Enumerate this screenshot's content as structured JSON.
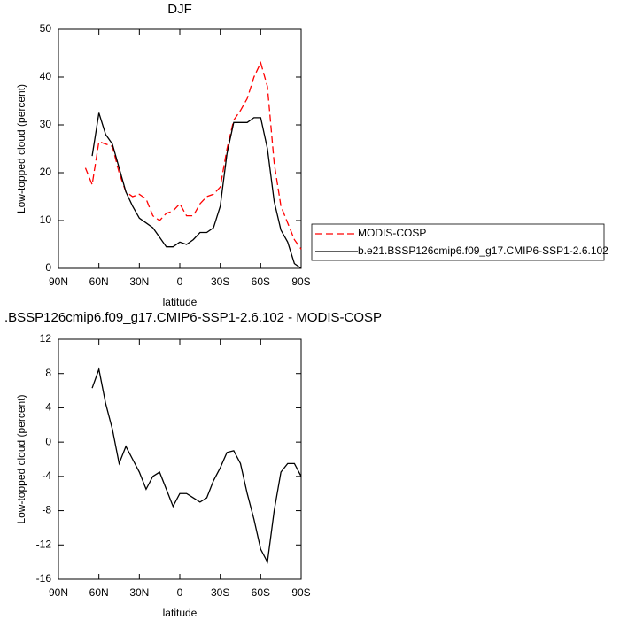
{
  "chart_data": [
    {
      "type": "line",
      "title": "DJF",
      "x_label": "latitude",
      "y_label": "Low-topped cloud (percent)",
      "x": [
        70,
        65,
        60,
        55,
        50,
        45,
        40,
        35,
        30,
        25,
        20,
        15,
        10,
        5,
        0,
        -5,
        -10,
        -15,
        -20,
        -25,
        -30,
        -35,
        -40,
        -45,
        -50,
        -55,
        -60,
        -65,
        -70,
        -75,
        -80,
        -85,
        -90
      ],
      "xlim": [
        90,
        -90
      ],
      "xticks": [
        {
          "value": 90,
          "label": "90N"
        },
        {
          "value": 60,
          "label": "60N"
        },
        {
          "value": 30,
          "label": "30N"
        },
        0,
        {
          "value": -30,
          "label": "30S"
        },
        {
          "value": -60,
          "label": "60S"
        },
        {
          "value": -90,
          "label": "90S"
        }
      ],
      "ylim": [
        0,
        50
      ],
      "yticks": [
        0,
        10,
        20,
        30,
        40,
        50
      ],
      "legend": "right",
      "series": [
        {
          "name": "MODIS-COSP",
          "color": "#ff0000",
          "style": "dashed",
          "values": [
            21,
            17.5,
            26.5,
            26,
            25.5,
            20,
            16,
            15,
            15.5,
            14.5,
            11,
            10,
            11.5,
            12,
            13.5,
            11,
            11,
            13.5,
            15,
            15.5,
            17,
            25,
            31,
            33,
            35.5,
            40,
            43,
            38,
            22,
            13,
            9.5,
            6,
            4
          ]
        },
        {
          "name": "b.e21.BSSP126cmip6.f09_g17.CMIP6-SSP1-2.6.102",
          "color": "#000000",
          "style": "solid",
          "values": [
            null,
            23.5,
            32.5,
            28,
            26,
            21,
            16,
            13,
            10.5,
            9.5,
            8.5,
            6.5,
            4.5,
            4.5,
            5.5,
            5,
            6,
            7.5,
            7.5,
            8.5,
            13,
            24,
            30.5,
            30.5,
            30.5,
            31.5,
            31.5,
            25,
            14,
            8,
            5.5,
            1,
            0
          ]
        }
      ]
    },
    {
      "type": "line",
      "title": ".BSSP126cmip6.f09_g17.CMIP6-SSP1-2.6.102 - MODIS-COSP",
      "x_label": "latitude",
      "y_label": "Low-topped cloud (percent)",
      "x": [
        65,
        60,
        55,
        50,
        45,
        40,
        35,
        30,
        25,
        20,
        15,
        10,
        5,
        0,
        -5,
        -10,
        -15,
        -20,
        -25,
        -30,
        -35,
        -40,
        -45,
        -50,
        -55,
        -60,
        -65,
        -70,
        -75,
        -80,
        -85,
        -90
      ],
      "xlim": [
        90,
        -90
      ],
      "xticks": [
        {
          "value": 90,
          "label": "90N"
        },
        {
          "value": 60,
          "label": "60N"
        },
        {
          "value": 30,
          "label": "30N"
        },
        0,
        {
          "value": -30,
          "label": "30S"
        },
        {
          "value": -60,
          "label": "60S"
        },
        {
          "value": -90,
          "label": "90S"
        }
      ],
      "ylim": [
        -16,
        12
      ],
      "yticks": [
        -16,
        -12,
        -8,
        -4,
        0,
        4,
        8,
        12
      ],
      "series": [
        {
          "color": "#000000",
          "style": "solid",
          "values": [
            6.3,
            8.5,
            4.5,
            1.5,
            -2.5,
            -0.5,
            -2,
            -3.5,
            -5.5,
            -4,
            -3.5,
            -5.5,
            -7.5,
            -6,
            -6,
            -6.5,
            -7,
            -6.5,
            -4.5,
            -3,
            -1.2,
            -1,
            -2.5,
            -6,
            -9,
            -12.5,
            -14,
            -8,
            -3.5,
            -2.5,
            -2.5,
            -4
          ]
        }
      ]
    }
  ]
}
